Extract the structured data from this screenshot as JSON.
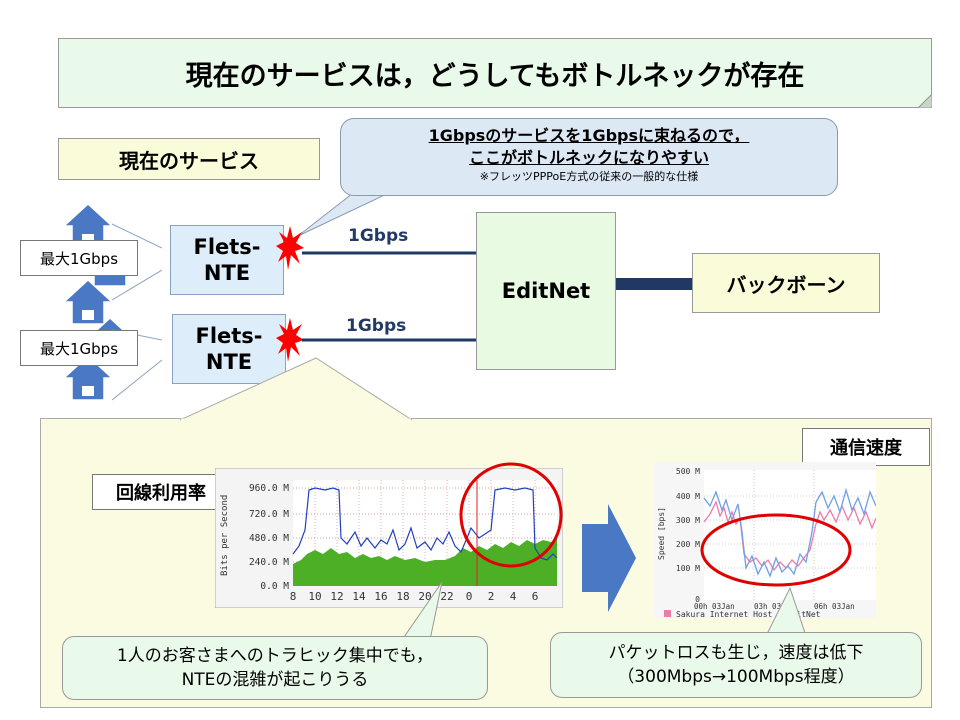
{
  "header": {
    "title": "現在のサービスは，どうしてもボトルネックが存在"
  },
  "current_service_label": "現在のサービス",
  "callout": {
    "line1": "1Gbpsのサービスを1Gbpsに束ねるので，",
    "line2": "ここがボトルネックになりやすい",
    "note": "※フレッツPPPoE方式の従来の一般的な仕様"
  },
  "users": {
    "max_label_1": "最大1Gbps",
    "max_label_2": "最大1Gbps"
  },
  "nte": {
    "line1": "Flets-",
    "line2": "NTE"
  },
  "links": {
    "top_label": "1Gbps",
    "bottom_label": "1Gbps"
  },
  "editnet_label": "EditNet",
  "backbone_label": "バックボーン",
  "utilization": {
    "title": "回線利用率",
    "y_label": "Bits per Second",
    "y_ticks": [
      "960.0 M",
      "720.0 M",
      "480.0 M",
      "240.0 M",
      "0.0 M"
    ],
    "x_ticks": [
      "8",
      "10",
      "12",
      "14",
      "16",
      "18",
      "20",
      "22",
      "0",
      "2",
      "4",
      "6"
    ]
  },
  "speed": {
    "title": "通信速度",
    "y_label": "Speed [bps]",
    "y_ticks": [
      "500 M",
      "400 M",
      "300 M",
      "200 M",
      "100 M",
      "0"
    ],
    "x_ticks": [
      "00h 03Jan",
      "03h 03Jan",
      "06h 03Jan"
    ],
    "legend": "Sakura Internet Host - EditNet"
  },
  "bubble_left": {
    "line1": "1人のお客さまへのトラヒック集中でも，",
    "line2": "NTEの混雑が起こりうる"
  },
  "bubble_right": {
    "line1": "パケットロスも生じ，速度は低下",
    "line2": "（300Mbps→100Mbps程度）"
  },
  "colors": {
    "title_bg": "#eafaea",
    "house": "#4a78c4",
    "burst": "#ff0000",
    "link": "#1f3864",
    "highlight": "#e00000",
    "util_fill": "#4caf26",
    "util_line": "#2040c0",
    "speed_pink": "#f07aa8",
    "speed_blue": "#6f9fe6",
    "arrow": "#4a78c4"
  }
}
